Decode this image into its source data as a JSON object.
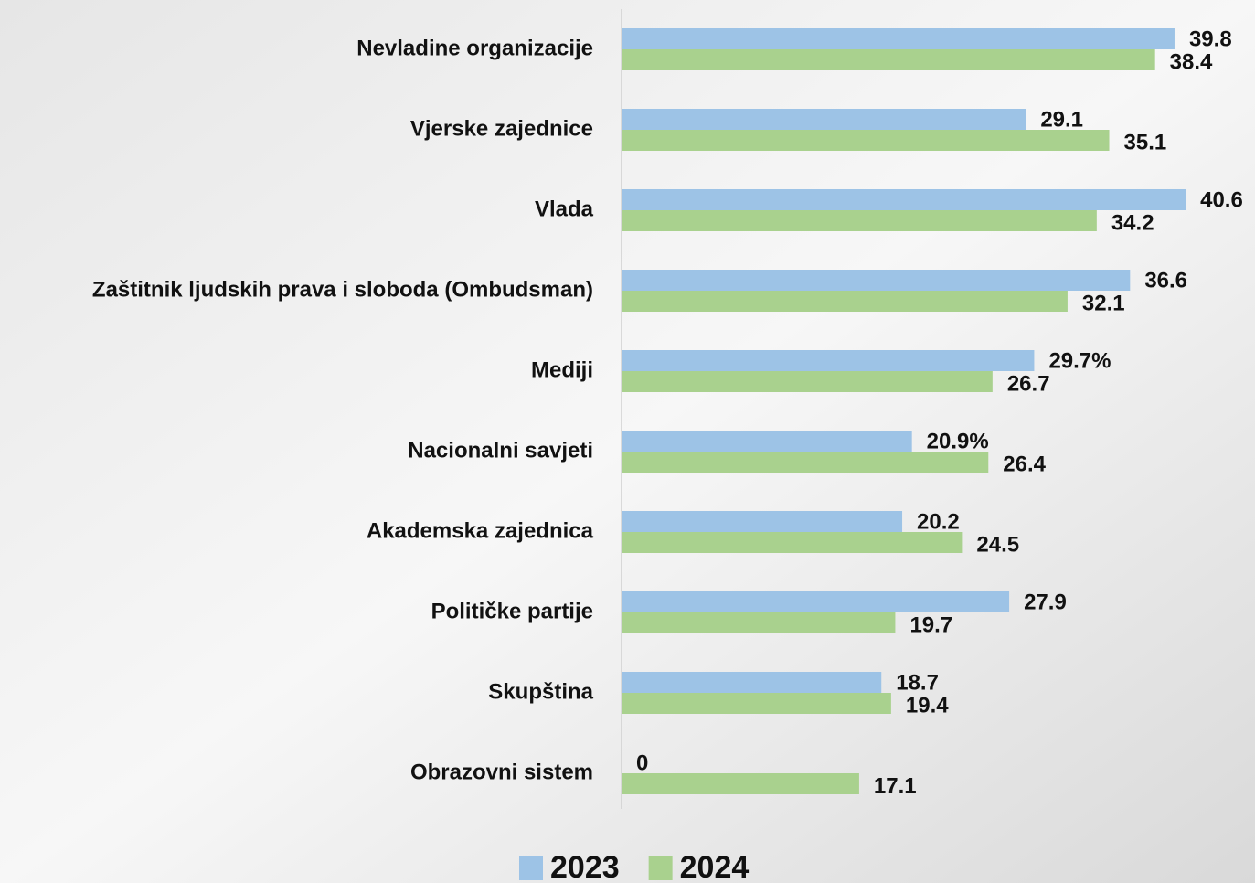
{
  "chart_data": {
    "type": "hbar",
    "categories": [
      "Nevladine organizacije",
      "Vjerske zajednice",
      "Vlada",
      "Zaštitnik ljudskih prava i sloboda (Ombudsman)",
      "Mediji",
      "Nacionalni savjeti",
      "Akademska zajednica",
      "Političke partije",
      "Skupština",
      "Obrazovni sistem"
    ],
    "series": [
      {
        "name": "2023",
        "color": "#9dc3e6",
        "values": [
          39.8,
          29.1,
          40.6,
          36.6,
          29.7,
          20.9,
          20.2,
          27.9,
          18.7,
          0
        ],
        "value_labels": [
          "39.8",
          "29.1",
          "40.6",
          "36.6",
          "29.7%",
          "20.9%",
          "20.2",
          "27.9",
          "18.7",
          "0"
        ]
      },
      {
        "name": "2024",
        "color": "#a9d18e",
        "values": [
          38.4,
          35.1,
          34.2,
          32.1,
          26.7,
          26.4,
          24.5,
          19.7,
          19.4,
          17.1
        ]
      }
    ],
    "xlim": [
      0,
      45
    ],
    "legend": "bottom"
  }
}
